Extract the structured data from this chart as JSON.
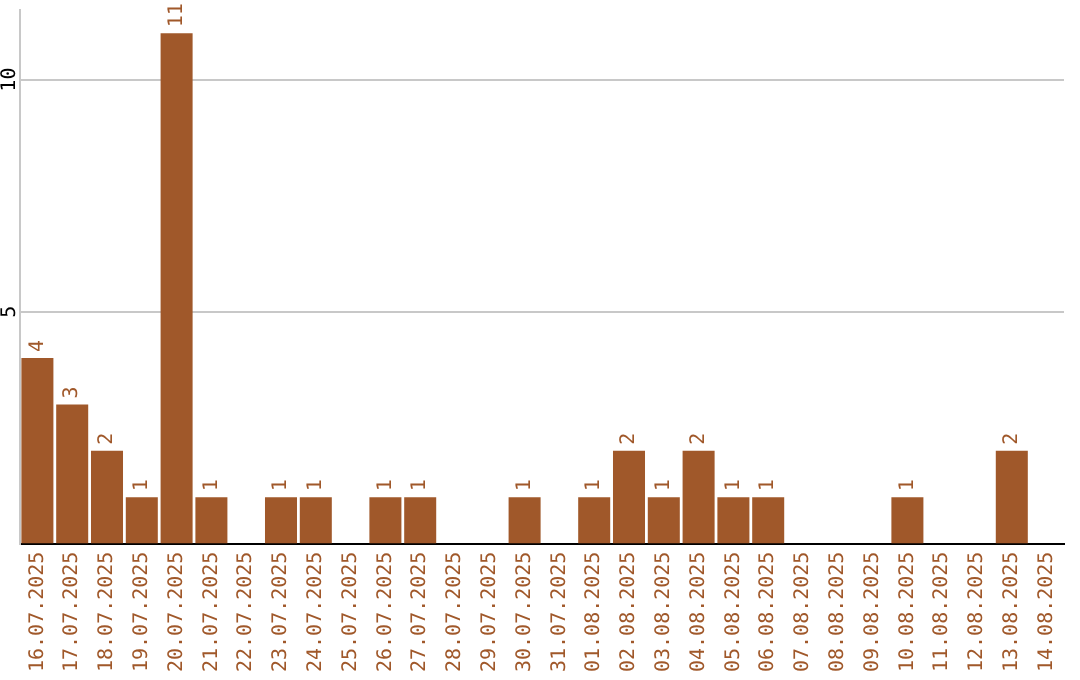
{
  "chart_data": {
    "type": "bar",
    "categories": [
      "16.07.2025",
      "17.07.2025",
      "18.07.2025",
      "19.07.2025",
      "20.07.2025",
      "21.07.2025",
      "22.07.2025",
      "23.07.2025",
      "24.07.2025",
      "25.07.2025",
      "26.07.2025",
      "27.07.2025",
      "28.07.2025",
      "29.07.2025",
      "30.07.2025",
      "31.07.2025",
      "01.08.2025",
      "02.08.2025",
      "03.08.2025",
      "04.08.2025",
      "05.08.2025",
      "06.08.2025",
      "07.08.2025",
      "08.08.2025",
      "09.08.2025",
      "10.08.2025",
      "11.08.2025",
      "12.08.2025",
      "13.08.2025",
      "14.08.2025"
    ],
    "values": [
      4,
      3,
      2,
      1,
      11,
      1,
      0,
      1,
      1,
      0,
      1,
      1,
      0,
      0,
      1,
      0,
      1,
      2,
      1,
      2,
      1,
      1,
      0,
      0,
      0,
      1,
      0,
      0,
      2,
      0
    ],
    "value_labels": [
      "4",
      "3",
      "2",
      "1",
      "11",
      "1",
      null,
      "1",
      "1",
      null,
      "1",
      "1",
      null,
      null,
      "1",
      null,
      "1",
      "2",
      "1",
      "2",
      "1",
      "1",
      null,
      null,
      null,
      "1",
      null,
      null,
      "2",
      null
    ],
    "color": "#a0582a",
    "ylim": [
      0,
      11.5
    ],
    "yticks": [
      5,
      10
    ],
    "grid": "y",
    "legend": false
  }
}
